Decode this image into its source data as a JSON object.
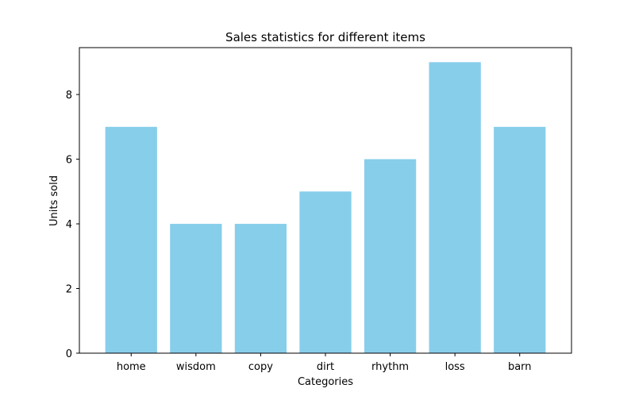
{
  "chart_data": {
    "type": "bar",
    "title": "Sales statistics for different items",
    "xlabel": "Categories",
    "ylabel": "Units sold",
    "categories": [
      "home",
      "wisdom",
      "copy",
      "dirt",
      "rhythm",
      "loss",
      "barn"
    ],
    "values": [
      7,
      4,
      4,
      5,
      6,
      9,
      7
    ],
    "ylim": [
      0,
      9.45
    ],
    "yticks": [
      0,
      2,
      4,
      6,
      8
    ],
    "bar_color": "#87ceeb",
    "grid": false,
    "legend": "none"
  }
}
